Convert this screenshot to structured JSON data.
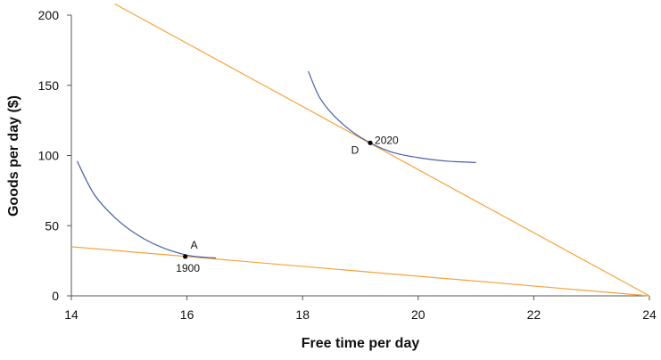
{
  "chart_data": {
    "type": "line",
    "xlabel": "Free time per day",
    "ylabel": "Goods per day ($)",
    "xlim": [
      14,
      24
    ],
    "ylim": [
      0,
      200
    ],
    "x_ticks": [
      14,
      16,
      18,
      20,
      22,
      24
    ],
    "y_ticks": [
      0,
      50,
      100,
      150,
      200
    ],
    "grid": false,
    "colors": {
      "budget_line": "#F5A33C",
      "indifference_curve": "#4A5FA8",
      "point": "#000000",
      "axis": "#555555"
    },
    "budget_lines": [
      {
        "points": [
          [
            14,
            35
          ],
          [
            24,
            0
          ]
        ]
      },
      {
        "points": [
          [
            14.75,
            208
          ],
          [
            24,
            0
          ]
        ]
      }
    ],
    "indifference_curves": [
      {
        "points": [
          [
            14.1,
            96
          ],
          [
            14.4,
            72
          ],
          [
            14.8,
            54
          ],
          [
            15.2,
            42
          ],
          [
            15.6,
            34
          ],
          [
            16.0,
            29
          ],
          [
            16.3,
            27.5
          ],
          [
            16.5,
            27
          ]
        ]
      },
      {
        "points": [
          [
            18.1,
            160
          ],
          [
            18.3,
            141
          ],
          [
            18.6,
            126
          ],
          [
            19.0,
            113
          ],
          [
            19.5,
            103
          ],
          [
            20.0,
            98.5
          ],
          [
            20.5,
            96
          ],
          [
            21.0,
            95
          ]
        ]
      }
    ],
    "points": [
      {
        "x": 15.97,
        "y": 28,
        "letter": "A",
        "year": "1900"
      },
      {
        "x": 19.17,
        "y": 109,
        "letter": "D",
        "year": "2020"
      }
    ]
  }
}
